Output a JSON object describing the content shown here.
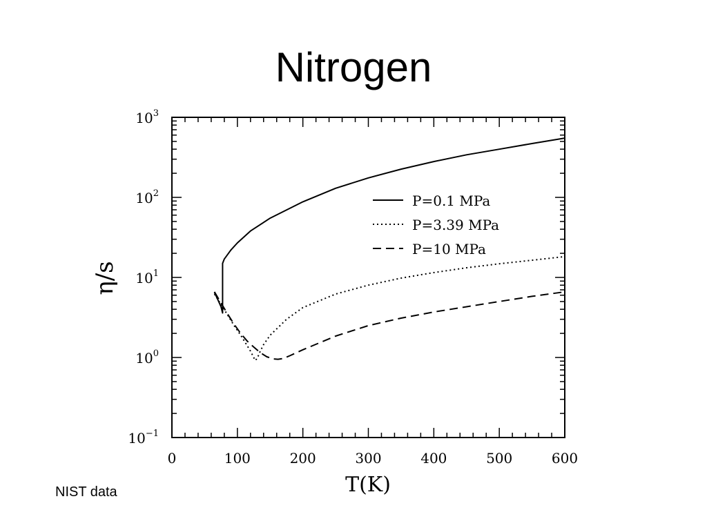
{
  "slide": {
    "title": "Nitrogen",
    "footnote": "NIST data"
  },
  "chart_data": {
    "type": "line",
    "title": "",
    "xlabel": "T(K)",
    "ylabel": "η/s",
    "xlim": [
      0,
      600
    ],
    "ylim": [
      0.1,
      1000
    ],
    "yscale": "log",
    "x_ticks": [
      0,
      100,
      200,
      300,
      400,
      500,
      600
    ],
    "y_ticks": [
      {
        "base": "10",
        "exp": "−1",
        "value": 0.1
      },
      {
        "base": "10",
        "exp": "0",
        "value": 1
      },
      {
        "base": "10",
        "exp": "1",
        "value": 10
      },
      {
        "base": "10",
        "exp": "2",
        "value": 100
      },
      {
        "base": "10",
        "exp": "3",
        "value": 1000
      }
    ],
    "grid": false,
    "legend_position": "upper-right",
    "series": [
      {
        "name": "P=0.1 MPa",
        "style": "solid",
        "color": "#000000",
        "x": [
          65,
          70,
          75,
          77.4,
          77.4,
          80,
          90,
          100,
          120,
          150,
          200,
          250,
          300,
          350,
          400,
          450,
          500,
          550,
          600
        ],
        "y": [
          6.5,
          5.3,
          4.3,
          3.6,
          15,
          17,
          22,
          27,
          38,
          55,
          88,
          130,
          175,
          225,
          280,
          340,
          400,
          470,
          550
        ]
      },
      {
        "name": "P=3.39 MPa",
        "style": "dotted",
        "color": "#000000",
        "x": [
          65,
          75,
          85,
          95,
          105,
          115,
          120,
          125,
          127,
          129,
          132,
          135,
          140,
          150,
          175,
          200,
          250,
          300,
          350,
          400,
          450,
          500,
          550,
          600
        ],
        "y": [
          6.2,
          4.6,
          3.4,
          2.5,
          1.9,
          1.4,
          1.2,
          1.0,
          0.92,
          0.95,
          1.05,
          1.2,
          1.45,
          1.9,
          3.0,
          4.2,
          6.2,
          8.0,
          9.8,
          11.5,
          13.2,
          14.8,
          16.4,
          18.2
        ]
      },
      {
        "name": "P=10 MPa",
        "style": "dashed",
        "color": "#000000",
        "x": [
          65,
          75,
          85,
          95,
          105,
          115,
          125,
          135,
          145,
          155,
          162,
          170,
          180,
          200,
          250,
          300,
          350,
          400,
          450,
          500,
          550,
          600
        ],
        "y": [
          6.6,
          4.8,
          3.5,
          2.6,
          2.0,
          1.6,
          1.35,
          1.15,
          1.02,
          0.96,
          0.95,
          0.97,
          1.05,
          1.25,
          1.85,
          2.5,
          3.1,
          3.7,
          4.3,
          5.0,
          5.8,
          6.6
        ]
      }
    ]
  }
}
